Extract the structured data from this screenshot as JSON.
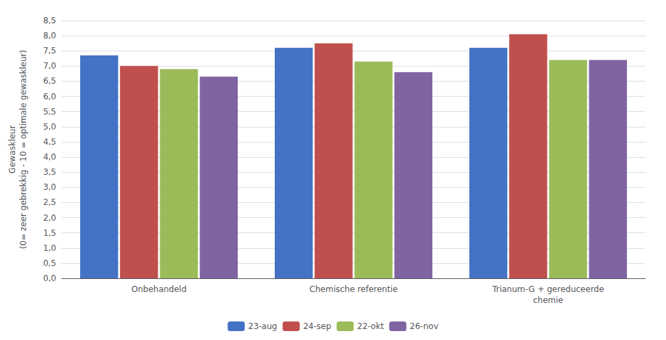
{
  "chart_data": {
    "type": "bar",
    "categories": [
      "Onbehandeld",
      "Chemische referentie",
      "Trianum-G + gereduceerde\nchemie"
    ],
    "series": [
      {
        "name": "23-aug",
        "color": "#4472C4",
        "values": [
          7.35,
          7.6,
          7.6
        ]
      },
      {
        "name": "24-sep",
        "color": "#C0504D",
        "values": [
          7.0,
          7.75,
          8.05
        ]
      },
      {
        "name": "22-okt",
        "color": "#9BBB59",
        "values": [
          6.9,
          7.15,
          7.2
        ]
      },
      {
        "name": "26-nov",
        "color": "#8064A2",
        "values": [
          6.65,
          6.8,
          7.2
        ]
      }
    ],
    "ylabel": "Gewaskleur\n(0= zeer gebrekkig - 10 = optimale gewaskleur)",
    "ylim": [
      0,
      8.5
    ],
    "yticks": [
      {
        "value": 0.0,
        "label": "0,0"
      },
      {
        "value": 0.5,
        "label": "0,5"
      },
      {
        "value": 1.0,
        "label": "1,0"
      },
      {
        "value": 1.5,
        "label": "1,5"
      },
      {
        "value": 2.0,
        "label": "2,0"
      },
      {
        "value": 2.5,
        "label": "2,5"
      },
      {
        "value": 3.0,
        "label": "3,0"
      },
      {
        "value": 3.5,
        "label": "3,5"
      },
      {
        "value": 4.0,
        "label": "4,0"
      },
      {
        "value": 4.5,
        "label": "4,5"
      },
      {
        "value": 5.0,
        "label": "5,0"
      },
      {
        "value": 5.5,
        "label": "5,5"
      },
      {
        "value": 6.0,
        "label": "6,0"
      },
      {
        "value": 6.5,
        "label": "6,5"
      },
      {
        "value": 7.0,
        "label": "7,0"
      },
      {
        "value": 7.5,
        "label": "7,5"
      },
      {
        "value": 8.0,
        "label": "8,0"
      },
      {
        "value": 8.5,
        "label": "8,5"
      }
    ],
    "grid": true,
    "legend": "bottom"
  }
}
